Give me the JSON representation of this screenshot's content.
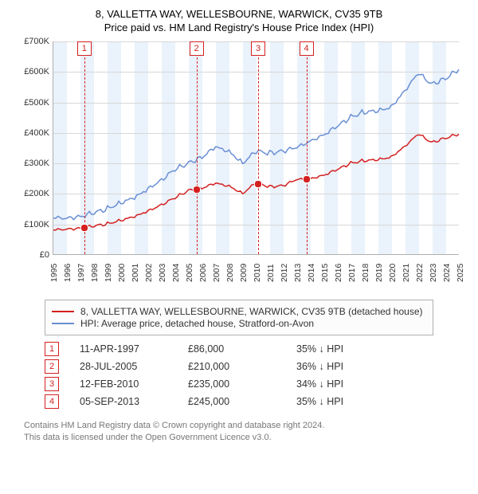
{
  "title_line1": "8, VALLETTA WAY, WELLESBOURNE, WARWICK, CV35 9TB",
  "title_line2": "Price paid vs. HM Land Registry's House Price Index (HPI)",
  "chart": {
    "type": "line",
    "x_axis": {
      "min": 1995,
      "max": 2025,
      "tick_step": 1
    },
    "y_axis": {
      "min": 0,
      "max": 700,
      "tick_step": 100,
      "tick_prefix": "£",
      "tick_suffix": "K"
    },
    "background_color": "#ffffff",
    "grid_color": "#d8d8d8",
    "band_color": "#eaf2fb",
    "axis_color": "#b0b0b0",
    "label_fontsize": 11,
    "line_width": 1.5,
    "hpi_series": {
      "color": "#6a8fd4",
      "points": [
        [
          1995,
          120
        ],
        [
          1996,
          118
        ],
        [
          1997,
          125
        ],
        [
          1998,
          135
        ],
        [
          1999,
          150
        ],
        [
          2000,
          170
        ],
        [
          2001,
          185
        ],
        [
          2002,
          215
        ],
        [
          2003,
          245
        ],
        [
          2004,
          278
        ],
        [
          2005,
          300
        ],
        [
          2006,
          320
        ],
        [
          2007,
          352
        ],
        [
          2008,
          338
        ],
        [
          2009,
          300
        ],
        [
          2010,
          338
        ],
        [
          2011,
          333
        ],
        [
          2012,
          340
        ],
        [
          2013,
          350
        ],
        [
          2014,
          372
        ],
        [
          2015,
          393
        ],
        [
          2016,
          420
        ],
        [
          2017,
          452
        ],
        [
          2018,
          468
        ],
        [
          2019,
          470
        ],
        [
          2020,
          485
        ],
        [
          2021,
          538
        ],
        [
          2022,
          595
        ],
        [
          2023,
          560
        ],
        [
          2024,
          578
        ],
        [
          2025,
          608
        ]
      ]
    },
    "price_series": {
      "color": "#d42020",
      "points": [
        [
          1995,
          80
        ],
        [
          1996,
          82
        ],
        [
          1997,
          86
        ],
        [
          1998,
          92
        ],
        [
          1999,
          100
        ],
        [
          2000,
          112
        ],
        [
          2001,
          123
        ],
        [
          2002,
          142
        ],
        [
          2003,
          163
        ],
        [
          2004,
          185
        ],
        [
          2005,
          210
        ],
        [
          2006,
          218
        ],
        [
          2007,
          233
        ],
        [
          2008,
          224
        ],
        [
          2009,
          200
        ],
        [
          2010,
          235
        ],
        [
          2011,
          222
        ],
        [
          2012,
          226
        ],
        [
          2013,
          245
        ],
        [
          2014,
          248
        ],
        [
          2015,
          260
        ],
        [
          2016,
          278
        ],
        [
          2017,
          300
        ],
        [
          2018,
          308
        ],
        [
          2019,
          310
        ],
        [
          2020,
          320
        ],
        [
          2021,
          355
        ],
        [
          2022,
          395
        ],
        [
          2023,
          368
        ],
        [
          2024,
          382
        ],
        [
          2025,
          395
        ]
      ]
    },
    "transaction_markers": [
      {
        "n": "1",
        "year": 1997.28
      },
      {
        "n": "2",
        "year": 2005.57
      },
      {
        "n": "3",
        "year": 2010.12
      },
      {
        "n": "4",
        "year": 2013.68
      }
    ]
  },
  "legend": {
    "series1": {
      "label": "8, VALLETTA WAY, WELLESBOURNE, WARWICK, CV35 9TB (detached house)",
      "color": "#d42020"
    },
    "series2": {
      "label": "HPI: Average price, detached house, Stratford-on-Avon",
      "color": "#6a8fd4"
    }
  },
  "transactions": [
    {
      "n": "1",
      "date": "11-APR-1997",
      "price": "£86,000",
      "diff": "35% ↓ HPI"
    },
    {
      "n": "2",
      "date": "28-JUL-2005",
      "price": "£210,000",
      "diff": "36% ↓ HPI"
    },
    {
      "n": "3",
      "date": "12-FEB-2010",
      "price": "£235,000",
      "diff": "34% ↓ HPI"
    },
    {
      "n": "4",
      "date": "05-SEP-2013",
      "price": "£245,000",
      "diff": "35% ↓ HPI"
    }
  ],
  "footer_line1": "Contains HM Land Registry data © Crown copyright and database right 2024.",
  "footer_line2": "This data is licensed under the Open Government Licence v3.0."
}
